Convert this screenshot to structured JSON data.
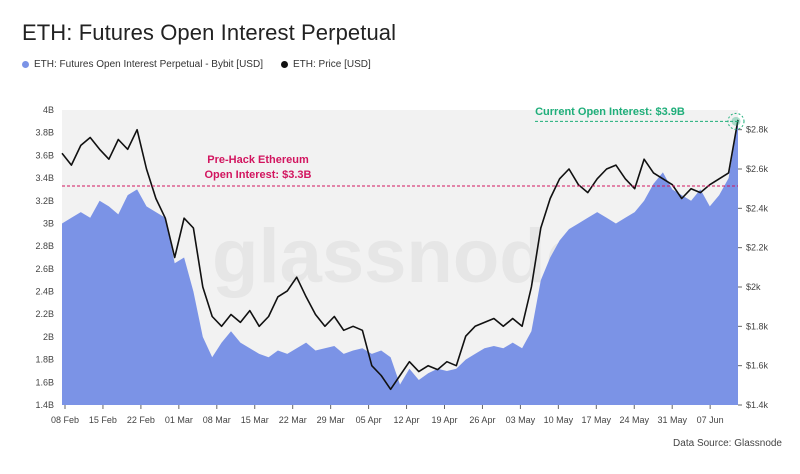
{
  "title": "ETH: Futures Open Interest Perpetual",
  "legend": [
    {
      "label": "ETH: Futures Open Interest Perpetual - Bybit [USD]",
      "color": "#7b93e6"
    },
    {
      "label": "ETH: Price [USD]",
      "color": "#111111"
    }
  ],
  "watermark": "glassnode",
  "source": "Data Source: Glassnode",
  "annotations": {
    "prehack": [
      "Pre-Hack Ethereum",
      "Open Interest: $3.3B"
    ],
    "current": "Current Open Interest: $3.9B"
  },
  "colors": {
    "area": "#7b93e6",
    "price": "#111111",
    "prehack": "#d2155f",
    "current": "#1fae7a",
    "plot_bg": "#f2f2f2"
  },
  "chart_data": {
    "type": "area",
    "x_ticks": [
      "08 Feb",
      "15 Feb",
      "22 Feb",
      "01 Mar",
      "08 Mar",
      "15 Mar",
      "22 Mar",
      "29 Mar",
      "05 Apr",
      "12 Apr",
      "19 Apr",
      "26 Apr",
      "03 May",
      "10 May",
      "17 May",
      "24 May",
      "31 May",
      "07 Jun"
    ],
    "y_left": {
      "ticks": [
        "1.4B",
        "1.6B",
        "1.8B",
        "2B",
        "2.2B",
        "2.4B",
        "2.6B",
        "2.8B",
        "3B",
        "3.2B",
        "3.4B",
        "3.6B",
        "3.8B",
        "4B"
      ],
      "min": 1.4,
      "max": 4.0,
      "unit": "B USD"
    },
    "y_right": {
      "ticks": [
        "$1.4k",
        "$1.6k",
        "$1.8k",
        "$2k",
        "$2.2k",
        "$2.4k",
        "$2.6k",
        "$2.8k"
      ],
      "min": 1.4,
      "max": 2.9,
      "unit": "k USD"
    },
    "series": [
      {
        "name": "ETH: Futures Open Interest Perpetual - Bybit [USD]",
        "axis": "left",
        "points": [
          [
            0,
            3.0
          ],
          [
            1,
            3.05
          ],
          [
            2,
            3.1
          ],
          [
            3,
            3.05
          ],
          [
            4,
            3.2
          ],
          [
            5,
            3.15
          ],
          [
            6,
            3.08
          ],
          [
            7,
            3.25
          ],
          [
            8,
            3.3
          ],
          [
            9,
            3.15
          ],
          [
            10,
            3.1
          ],
          [
            11,
            3.05
          ],
          [
            12,
            2.65
          ],
          [
            13,
            2.7
          ],
          [
            14,
            2.4
          ],
          [
            15,
            2.0
          ],
          [
            16,
            1.82
          ],
          [
            17,
            1.95
          ],
          [
            18,
            2.05
          ],
          [
            19,
            1.95
          ],
          [
            20,
            1.9
          ],
          [
            21,
            1.85
          ],
          [
            22,
            1.82
          ],
          [
            23,
            1.88
          ],
          [
            24,
            1.85
          ],
          [
            25,
            1.9
          ],
          [
            26,
            1.95
          ],
          [
            27,
            1.88
          ],
          [
            28,
            1.9
          ],
          [
            29,
            1.92
          ],
          [
            30,
            1.85
          ],
          [
            31,
            1.88
          ],
          [
            32,
            1.9
          ],
          [
            33,
            1.85
          ],
          [
            34,
            1.88
          ],
          [
            35,
            1.82
          ],
          [
            36,
            1.58
          ],
          [
            37,
            1.72
          ],
          [
            38,
            1.62
          ],
          [
            39,
            1.68
          ],
          [
            40,
            1.72
          ],
          [
            41,
            1.7
          ],
          [
            42,
            1.72
          ],
          [
            43,
            1.8
          ],
          [
            44,
            1.85
          ],
          [
            45,
            1.9
          ],
          [
            46,
            1.92
          ],
          [
            47,
            1.9
          ],
          [
            48,
            1.95
          ],
          [
            49,
            1.9
          ],
          [
            50,
            2.05
          ],
          [
            51,
            2.5
          ],
          [
            52,
            2.7
          ],
          [
            53,
            2.85
          ],
          [
            54,
            2.95
          ],
          [
            55,
            3.0
          ],
          [
            56,
            3.05
          ],
          [
            57,
            3.1
          ],
          [
            58,
            3.05
          ],
          [
            59,
            3.0
          ],
          [
            60,
            3.05
          ],
          [
            61,
            3.1
          ],
          [
            62,
            3.2
          ],
          [
            63,
            3.35
          ],
          [
            64,
            3.45
          ],
          [
            65,
            3.3
          ],
          [
            66,
            3.25
          ],
          [
            67,
            3.2
          ],
          [
            68,
            3.3
          ],
          [
            69,
            3.15
          ],
          [
            70,
            3.25
          ],
          [
            71,
            3.4
          ],
          [
            72,
            3.9
          ]
        ]
      },
      {
        "name": "ETH: Price [USD]",
        "axis": "right",
        "points": [
          [
            0,
            2.68
          ],
          [
            1,
            2.62
          ],
          [
            2,
            2.72
          ],
          [
            3,
            2.76
          ],
          [
            4,
            2.7
          ],
          [
            5,
            2.65
          ],
          [
            6,
            2.75
          ],
          [
            7,
            2.7
          ],
          [
            8,
            2.8
          ],
          [
            9,
            2.6
          ],
          [
            10,
            2.45
          ],
          [
            11,
            2.35
          ],
          [
            12,
            2.15
          ],
          [
            13,
            2.35
          ],
          [
            14,
            2.3
          ],
          [
            15,
            2.0
          ],
          [
            16,
            1.85
          ],
          [
            17,
            1.8
          ],
          [
            18,
            1.86
          ],
          [
            19,
            1.82
          ],
          [
            20,
            1.88
          ],
          [
            21,
            1.8
          ],
          [
            22,
            1.85
          ],
          [
            23,
            1.95
          ],
          [
            24,
            1.98
          ],
          [
            25,
            2.05
          ],
          [
            26,
            1.95
          ],
          [
            27,
            1.86
          ],
          [
            28,
            1.8
          ],
          [
            29,
            1.85
          ],
          [
            30,
            1.78
          ],
          [
            31,
            1.8
          ],
          [
            32,
            1.78
          ],
          [
            33,
            1.6
          ],
          [
            34,
            1.55
          ],
          [
            35,
            1.48
          ],
          [
            36,
            1.55
          ],
          [
            37,
            1.62
          ],
          [
            38,
            1.57
          ],
          [
            39,
            1.6
          ],
          [
            40,
            1.58
          ],
          [
            41,
            1.62
          ],
          [
            42,
            1.6
          ],
          [
            43,
            1.75
          ],
          [
            44,
            1.8
          ],
          [
            45,
            1.82
          ],
          [
            46,
            1.84
          ],
          [
            47,
            1.8
          ],
          [
            48,
            1.84
          ],
          [
            49,
            1.8
          ],
          [
            50,
            2.0
          ],
          [
            51,
            2.3
          ],
          [
            52,
            2.45
          ],
          [
            53,
            2.55
          ],
          [
            54,
            2.6
          ],
          [
            55,
            2.52
          ],
          [
            56,
            2.48
          ],
          [
            57,
            2.55
          ],
          [
            58,
            2.6
          ],
          [
            59,
            2.62
          ],
          [
            60,
            2.55
          ],
          [
            61,
            2.5
          ],
          [
            62,
            2.65
          ],
          [
            63,
            2.58
          ],
          [
            64,
            2.55
          ],
          [
            65,
            2.52
          ],
          [
            66,
            2.45
          ],
          [
            67,
            2.5
          ],
          [
            68,
            2.48
          ],
          [
            69,
            2.52
          ],
          [
            70,
            2.55
          ],
          [
            71,
            2.58
          ],
          [
            72,
            2.85
          ]
        ]
      }
    ],
    "reference_lines": [
      {
        "axis": "left",
        "value": 3.33,
        "label": "Pre-Hack Ethereum Open Interest: $3.3B"
      },
      {
        "axis": "left",
        "value": 3.9,
        "label": "Current Open Interest: $3.9B"
      }
    ],
    "grid": false
  }
}
